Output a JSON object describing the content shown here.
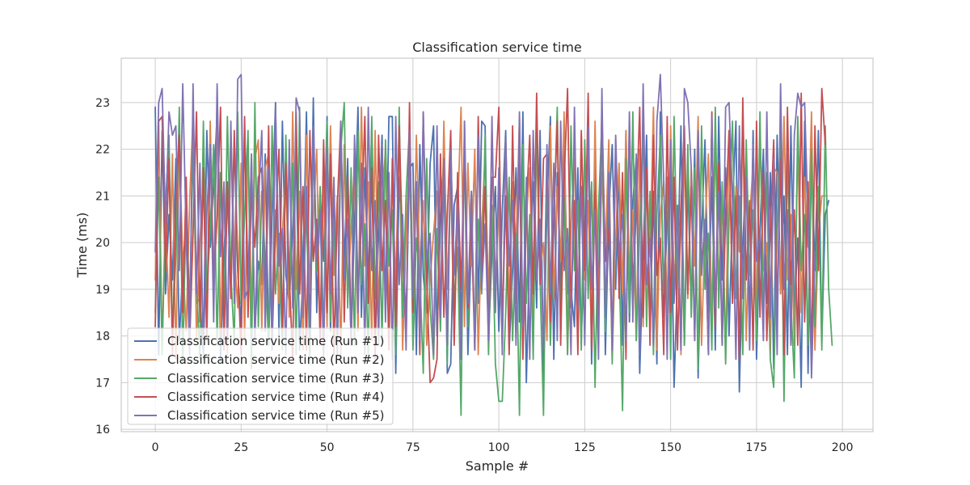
{
  "chart_data": {
    "type": "line",
    "title": "Classification service time",
    "xlabel": "Sample #",
    "ylabel": "Time (ms)",
    "xlim": [
      -9.9,
      208.9
    ],
    "ylim": [
      15.95,
      23.95
    ],
    "xticks": [
      0,
      25,
      50,
      75,
      100,
      125,
      150,
      175,
      200
    ],
    "yticks": [
      16,
      17,
      18,
      19,
      20,
      21,
      22,
      23
    ],
    "grid": true,
    "legend_position": "lower-left",
    "x": {
      "start": 0,
      "end": 199,
      "step": 1
    },
    "series": [
      {
        "name": "Classification service time (Run #1)",
        "color": "#4c72b0",
        "values": [
          22.9,
          17.6,
          22.4,
          18.9,
          20.6,
          19.2,
          21.8,
          17.9,
          19.5,
          20.4,
          18.3,
          22.7,
          18.7,
          18.8,
          17.6,
          22.4,
          19.9,
          21.3,
          22.7,
          17.5,
          19.8,
          21.1,
          18.9,
          22.2,
          19.4,
          18.2,
          22.5,
          19.1,
          21.8,
          18.1,
          19.6,
          19.1,
          21.9,
          17.8,
          20.6,
          23.0,
          18.0,
          22.6,
          19.3,
          18.7,
          20.3,
          21.9,
          17.7,
          19.4,
          22.8,
          18.3,
          23.1,
          18.5,
          21.1,
          19.6,
          22.7,
          18.1,
          20.9,
          17.6,
          22.4,
          19.5,
          21.8,
          17.9,
          20.4,
          22.9,
          18.4,
          21.6,
          19.0,
          22.5,
          17.8,
          20.2,
          22.3,
          18.6,
          22.7,
          22.7,
          17.2,
          21.4,
          19.8,
          18.4,
          21.6,
          21.7,
          17.6,
          22.1,
          19.3,
          18.5,
          21.7,
          22.5,
          18.0,
          20.4,
          21.9,
          17.2,
          17.4,
          20.8,
          21.2,
          18.2,
          22.0,
          17.6,
          20.1,
          21.7,
          18.7,
          22.6,
          22.5,
          17.9,
          19.8,
          21.2,
          18.1,
          20.7,
          22.4,
          17.7,
          19.4,
          21.6,
          18.3,
          22.8,
          17.0,
          19.9,
          21.3,
          18.6,
          22.4,
          17.1,
          20.8,
          22.7,
          17.5,
          21.5,
          18.9,
          22.2,
          18.9,
          19.0,
          18.2,
          21.6,
          17.9,
          20.3,
          22.5,
          17.4,
          21.7,
          18.8,
          22.9,
          17.6,
          20.6,
          22.1,
          19.0,
          21.6,
          17.8,
          22.4,
          18.3,
          20.9,
          21.8,
          17.2,
          19.7,
          22.3,
          18.1,
          21.1,
          17.4,
          22.8,
          18.4,
          20.5,
          21.7,
          16.9,
          19.3,
          22.5,
          17.8,
          21.3,
          18.6,
          22.0,
          17.1,
          20.2,
          22.2,
          18.5,
          21.4,
          17.7,
          22.7,
          19.2,
          21.6,
          18.0,
          20.7,
          22.6,
          16.8,
          19.9,
          21.8,
          18.2,
          22.4,
          17.5,
          20.3,
          22.0,
          18.7,
          21.5,
          17.3,
          22.3,
          18.9,
          21.0,
          17.6,
          22.5,
          18.4,
          20.1,
          16.9,
          22.6,
          17.2,
          21.9,
          19.4,
          22.4,
          17.9,
          20.6,
          20.9
        ]
      },
      {
        "name": "Classification service time (Run #2)",
        "color": "#dd8452",
        "values": [
          19.2,
          22.5,
          17.8,
          20.6,
          18.4,
          21.9,
          17.5,
          22.2,
          19.6,
          18.1,
          20.9,
          22.7,
          17.9,
          20.0,
          21.4,
          18.3,
          22.6,
          19.1,
          22.9,
          18.0,
          21.2,
          17.6,
          22.4,
          19.8,
          18.6,
          21.7,
          17.9,
          22.1,
          18.5,
          21.8,
          22.2,
          18.1,
          21.6,
          21.9,
          18.3,
          20.7,
          18.7,
          20.2,
          21.5,
          18.4,
          22.8,
          19.0,
          21.1,
          17.7,
          22.3,
          18.9,
          20.5,
          22.0,
          17.8,
          21.4,
          18.2,
          22.5,
          19.3,
          21.0,
          17.6,
          22.1,
          18.8,
          20.3,
          21.7,
          18.1,
          22.9,
          19.5,
          21.3,
          17.9,
          22.4,
          18.6,
          20.8,
          22.0,
          18.3,
          21.5,
          19.0,
          22.6,
          17.7,
          20.2,
          21.8,
          18.5,
          22.3,
          19.4,
          20.9,
          17.8,
          19.2,
          20.2,
          21.1,
          18.4,
          22.6,
          19.0,
          21.4,
          17.9,
          20.6,
          22.9,
          18.2,
          21.7,
          19.5,
          22.0,
          17.6,
          20.3,
          21.9,
          18.7,
          22.4,
          19.1,
          20.8,
          17.8,
          22.2,
          18.5,
          21.3,
          19.9,
          22.7,
          17.7,
          20.5,
          21.6,
          18.3,
          22.1,
          19.4,
          20.0,
          17.9,
          22.5,
          18.8,
          21.2,
          19.6,
          22.8,
          17.6,
          20.4,
          21.8,
          18.4,
          22.3,
          19.2,
          20.9,
          17.8,
          22.6,
          18.6,
          21.5,
          19.8,
          22.2,
          17.5,
          20.1,
          21.7,
          18.9,
          22.4,
          19.3,
          20.7,
          17.9,
          22.0,
          18.2,
          21.4,
          19.7,
          22.9,
          17.7,
          20.6,
          21.3,
          18.5,
          22.5,
          19.0,
          20.8,
          17.6,
          22.1,
          18.8,
          21.6,
          19.5,
          22.7,
          17.8,
          20.3,
          21.9,
          18.3,
          22.2,
          19.1,
          20.9,
          17.5,
          22.4,
          18.7,
          21.2,
          19.8,
          22.6,
          17.9,
          20.5,
          21.7,
          18.4,
          22.3,
          19.4,
          20.0,
          17.6,
          21.6,
          21.5,
          18.9,
          22.7,
          19.2,
          20.6,
          17.8,
          22.2,
          18.5,
          21.4,
          19.9,
          22.8,
          17.7,
          20.2,
          21.0,
          21.0
        ]
      },
      {
        "name": "Classification service time (Run #3)",
        "color": "#55a868",
        "values": [
          18.5,
          21.4,
          17.6,
          20.8,
          22.3,
          18.1,
          19.7,
          22.9,
          17.4,
          20.9,
          18.6,
          21.9,
          19.2,
          17.5,
          22.6,
          18.9,
          20.3,
          22.1,
          17.8,
          21.5,
          18.4,
          22.7,
          19.3,
          17.9,
          22.8,
          18.7,
          20.6,
          22.4,
          17.3,
          23.0,
          18.2,
          21.1,
          19.6,
          17.8,
          22.5,
          18.9,
          20.2,
          17.7,
          22.3,
          19.0,
          21.7,
          17.6,
          22.9,
          18.5,
          20.8,
          17.4,
          22.1,
          19.4,
          21.2,
          17.9,
          22.6,
          18.3,
          20.5,
          17.7,
          22.0,
          23.0,
          18.6,
          21.6,
          17.8,
          22.4,
          19.1,
          20.4,
          17.5,
          22.7,
          18.8,
          21.3,
          17.9,
          22.2,
          19.5,
          20.7,
          17.6,
          22.9,
          18.4,
          21.0,
          22.5,
          17.7,
          20.1,
          19.3,
          17.2,
          21.8,
          18.6,
          17.5,
          20.3,
          18.1,
          21.5,
          17.4,
          22.0,
          18.7,
          19.9,
          16.3,
          22.6,
          18.2,
          21.1,
          17.7,
          20.5,
          18.9,
          22.3,
          17.6,
          20.8,
          17.4,
          16.6,
          16.6,
          18.5,
          21.4,
          17.9,
          20.2,
          16.3,
          22.1,
          18.7,
          20.6,
          17.5,
          22.8,
          19.2,
          16.3,
          21.7,
          17.8,
          20.4,
          22.9,
          18.3,
          21.0,
          17.6,
          22.5,
          19.4,
          20.9,
          17.7,
          22.2,
          18.8,
          21.3,
          16.9,
          20.7,
          22.6,
          18.1,
          21.5,
          17.4,
          22.0,
          19.6,
          16.4,
          21.8,
          18.5,
          22.8,
          17.9,
          20.3,
          22.4,
          18.2,
          21.1,
          17.6,
          20.6,
          22.3,
          18.9,
          21.4,
          17.5,
          22.7,
          19.1,
          20.8,
          17.8,
          22.1,
          18.4,
          21.6,
          17.3,
          22.5,
          19.0,
          20.2,
          17.7,
          22.9,
          18.6,
          21.3,
          17.4,
          20.5,
          22.6,
          18.8,
          21.0,
          17.6,
          22.2,
          19.3,
          20.7,
          17.9,
          22.8,
          18.3,
          21.5,
          17.5,
          16.9,
          20.4,
          22.4,
          16.6,
          21.9,
          18.7,
          17.1,
          22.7,
          19.4,
          20.6,
          17.8,
          22.0,
          18.2,
          21.2,
          17.7,
          22.5,
          19.0,
          17.8
        ]
      },
      {
        "name": "Classification service time (Run #4)",
        "color": "#c44e52",
        "values": [
          18.2,
          22.6,
          22.7,
          19.4,
          21.8,
          17.6,
          20.9,
          22.3,
          18.5,
          21.4,
          17.8,
          20.2,
          22.8,
          18.3,
          21.6,
          17.9,
          22.1,
          19.1,
          20.6,
          22.9,
          17.7,
          21.3,
          18.8,
          22.4,
          19.5,
          17.6,
          22.7,
          18.4,
          21.1,
          19.9,
          21.4,
          21.6,
          18.6,
          22.5,
          17.8,
          20.3,
          22.0,
          18.1,
          21.7,
          19.3,
          17.5,
          22.8,
          18.9,
          21.2,
          17.7,
          22.4,
          19.6,
          20.5,
          17.9,
          22.2,
          18.5,
          21.9,
          17.6,
          20.8,
          22.6,
          18.3,
          21.4,
          17.8,
          22.1,
          19.0,
          20.4,
          22.7,
          18.7,
          21.6,
          17.5,
          22.3,
          19.4,
          20.9,
          17.7,
          21.8,
          18.2,
          22.5,
          19.8,
          17.9,
          23.0,
          18.5,
          21.3,
          17.6,
          22.8,
          19.2,
          17.0,
          17.1,
          17.5,
          21.9,
          18.4,
          20.6,
          22.4,
          17.8,
          21.5,
          19.0,
          22.1,
          18.6,
          20.4,
          17.7,
          22.7,
          19.3,
          21.2,
          17.9,
          21.4,
          21.4,
          22.9,
          18.1,
          21.0,
          17.6,
          22.5,
          18.7,
          21.7,
          17.5,
          20.8,
          22.3,
          18.9,
          23.2,
          19.1,
          21.8,
          21.9,
          18.3,
          20.5,
          22.6,
          17.8,
          21.3,
          23.3,
          18.6,
          20.9,
          17.6,
          22.4,
          19.4,
          23.2,
          17.7,
          21.1,
          18.2,
          22.8,
          19.6,
          20.3,
          17.9,
          22.2,
          18.8,
          21.5,
          17.5,
          22.6,
          19.0,
          20.7,
          22.9,
          18.4,
          21.6,
          17.8,
          22.3,
          19.3,
          20.1,
          17.6,
          22.7,
          18.5,
          21.4,
          17.7,
          20.8,
          22.5,
          18.9,
          21.2,
          17.9,
          22.1,
          19.5,
          20.4,
          17.6,
          22.8,
          18.2,
          21.7,
          17.8,
          20.6,
          22.4,
          18.7,
          21.0,
          17.5,
          23.1,
          19.2,
          20.9,
          17.7,
          22.6,
          18.4,
          21.5,
          17.9,
          20.3,
          22.2,
          18.6,
          21.8,
          17.6,
          22.9,
          19.1,
          20.7,
          17.8,
          23.2,
          18.3,
          21.3,
          17.5,
          22.5,
          19.4,
          23.3,
          22.1
        ]
      },
      {
        "name": "Classification service time (Run #5)",
        "color": "#8172b3",
        "values": [
          19.8,
          23.0,
          23.3,
          20.4,
          22.8,
          22.3,
          22.5,
          19.4,
          23.4,
          20.1,
          17.6,
          23.4,
          18.9,
          21.7,
          17.5,
          20.6,
          22.1,
          18.3,
          23.4,
          19.7,
          21.3,
          17.8,
          22.6,
          18.7,
          23.5,
          23.6,
          18.8,
          19.0,
          21.9,
          17.9,
          20.8,
          22.4,
          18.1,
          21.6,
          17.7,
          22.9,
          19.5,
          20.3,
          17.6,
          22.2,
          18.6,
          23.1,
          22.8,
          18.4,
          21.2,
          17.8,
          22.5,
          19.6,
          20.7,
          17.5,
          22.0,
          18.9,
          21.4,
          17.7,
          22.6,
          19.2,
          20.5,
          17.9,
          22.3,
          18.5,
          21.7,
          17.6,
          22.9,
          19.4,
          20.9,
          17.8,
          22.1,
          18.3,
          21.5,
          17.5,
          22.7,
          19.1,
          20.6,
          17.7,
          22.4,
          18.8,
          21.3,
          17.9,
          22.8,
          19.6,
          20.2,
          17.6,
          22.5,
          18.4,
          21.8,
          17.8,
          22.0,
          19.3,
          20.8,
          17.5,
          22.6,
          18.7,
          21.1,
          17.7,
          22.3,
          19.0,
          20.4,
          17.9,
          22.7,
          18.5,
          21.6,
          17.6,
          22.2,
          19.5,
          20.9,
          17.8,
          22.8,
          18.2,
          21.4,
          17.5,
          22.4,
          19.2,
          20.5,
          17.7,
          22.1,
          18.9,
          21.7,
          17.9,
          22.6,
          19.4,
          20.3,
          17.6,
          22.9,
          18.6,
          21.2,
          17.8,
          22.5,
          19.0,
          20.7,
          17.5,
          23.3,
          18.4,
          21.5,
          17.7,
          22.3,
          19.7,
          20.6,
          17.9,
          22.8,
          18.3,
          21.9,
          17.6,
          23.4,
          19.1,
          20.1,
          17.8,
          22.6,
          23.6,
          21.3,
          17.5,
          22.2,
          18.7,
          20.8,
          17.7,
          23.3,
          23.0,
          21.6,
          17.9,
          22.4,
          19.3,
          20.5,
          17.6,
          22.7,
          18.6,
          21.1,
          17.8,
          22.9,
          23.0,
          20.9,
          17.5,
          22.5,
          18.8,
          21.4,
          17.7,
          22.1,
          19.6,
          20.2,
          17.9,
          22.8,
          18.4,
          21.8,
          17.6,
          23.4,
          19.0,
          20.7,
          17.8,
          22.3,
          23.2,
          22.9,
          23.0,
          20.5,
          17.1,
          19.8
        ]
      }
    ]
  }
}
